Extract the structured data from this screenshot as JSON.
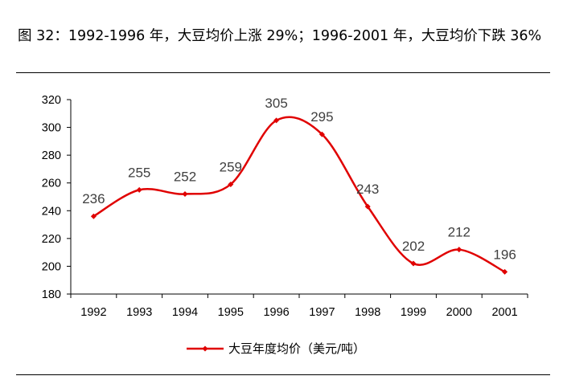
{
  "title": "图 32：1992-1996 年，大豆均价上涨 29%；1996-2001 年，大豆均价下跌 36%",
  "chart_data": {
    "type": "line",
    "categories": [
      "1992",
      "1993",
      "1994",
      "1995",
      "1996",
      "1997",
      "1998",
      "1999",
      "2000",
      "2001"
    ],
    "series": [
      {
        "name": "大豆年度均价（美元/吨）",
        "values": [
          236,
          255,
          252,
          259,
          305,
          295,
          243,
          202,
          212,
          196
        ],
        "color": "#e00000"
      }
    ],
    "ylim": [
      180,
      320
    ],
    "yticks": [
      180,
      200,
      220,
      240,
      260,
      280,
      300,
      320
    ],
    "smooth": true,
    "grid": false,
    "legend_position": "bottom",
    "data_labels": true
  }
}
